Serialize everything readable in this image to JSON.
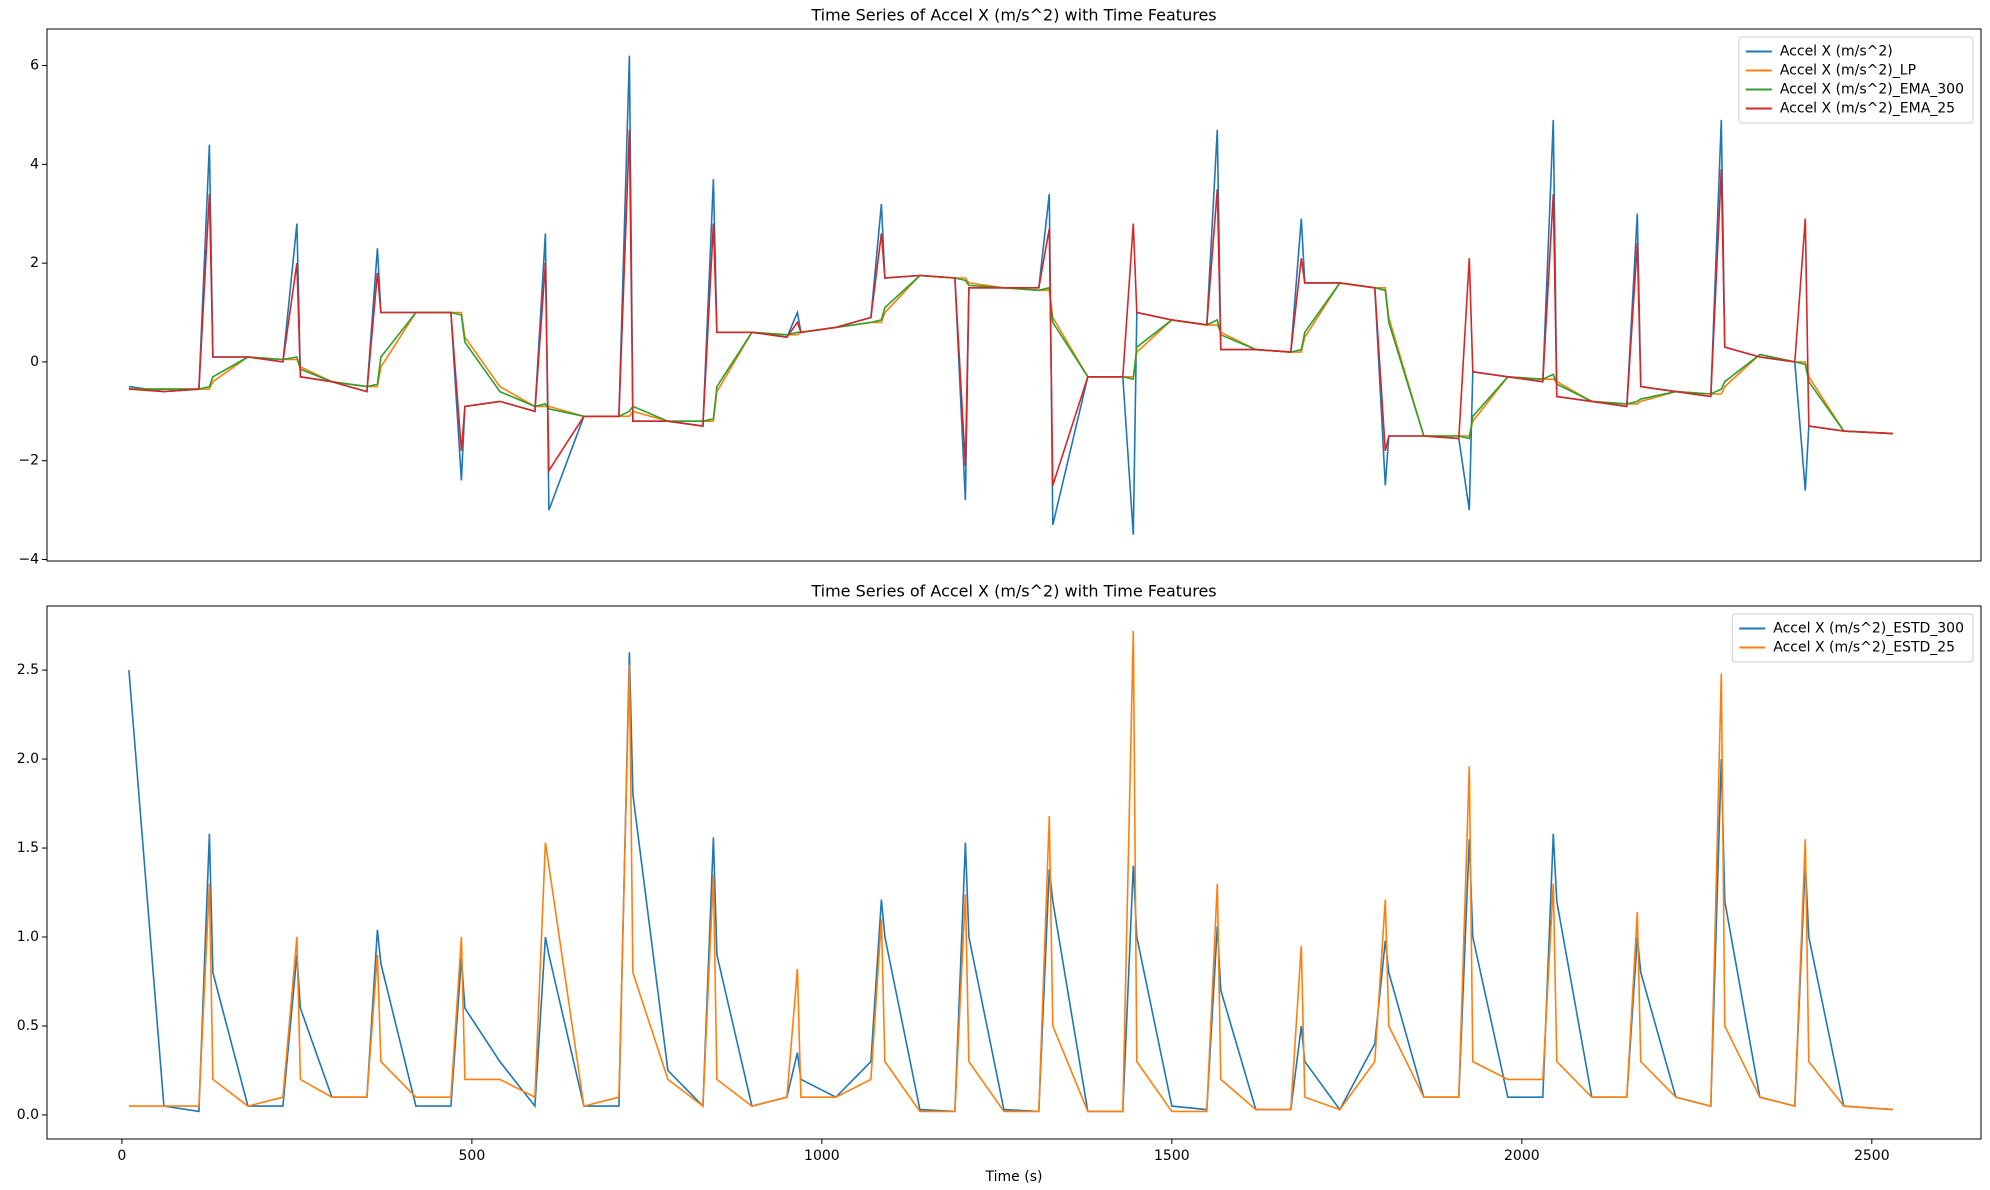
{
  "chart_data": [
    {
      "type": "line",
      "title": "Time Series of Accel X (m/s^2) with Time Features",
      "x": [
        10,
        60,
        110,
        125,
        130,
        180,
        230,
        250,
        255,
        300,
        350,
        365,
        370,
        420,
        470,
        485,
        490,
        540,
        590,
        605,
        610,
        660,
        710,
        725,
        730,
        780,
        830,
        845,
        850,
        900,
        950,
        965,
        970,
        1020,
        1070,
        1085,
        1090,
        1140,
        1190,
        1205,
        1210,
        1260,
        1310,
        1325,
        1330,
        1380,
        1430,
        1445,
        1450,
        1500,
        1550,
        1565,
        1570,
        1620,
        1670,
        1685,
        1690,
        1740,
        1790,
        1805,
        1810,
        1860,
        1910,
        1925,
        1930,
        1980,
        2030,
        2045,
        2050,
        2100,
        2150,
        2165,
        2170,
        2220,
        2270,
        2285,
        2290,
        2340,
        2390,
        2405,
        2410,
        2460,
        2530
      ],
      "xlim": [
        -107,
        2656
      ],
      "ylim": [
        -4.03,
        6.74
      ],
      "yticks": [
        {
          "value": -4,
          "label": "−4"
        },
        {
          "value": -2,
          "label": "−2"
        },
        0,
        2,
        4,
        6
      ],
      "legend": "upper right",
      "series": [
        {
          "name": "Accel X (m/s^2)",
          "color": "#1f77b4",
          "values": [
            -0.5,
            -0.6,
            -0.55,
            4.4,
            0.1,
            0.1,
            0.0,
            2.8,
            -0.3,
            -0.4,
            -0.6,
            2.3,
            1.0,
            1.0,
            1.0,
            -2.4,
            -0.9,
            -0.8,
            -1.0,
            2.6,
            -3.0,
            -1.1,
            -1.1,
            6.2,
            -1.2,
            -1.2,
            -1.3,
            3.7,
            0.6,
            0.6,
            0.5,
            1.0,
            0.6,
            0.7,
            0.9,
            3.2,
            1.7,
            1.75,
            1.7,
            -2.8,
            1.5,
            1.5,
            1.5,
            3.4,
            -3.3,
            -0.3,
            -0.3,
            -3.5,
            1.0,
            0.85,
            0.75,
            4.7,
            0.25,
            0.25,
            0.2,
            2.9,
            1.6,
            1.6,
            1.5,
            -2.5,
            -1.5,
            -1.5,
            -1.55,
            -3.0,
            -0.2,
            -0.3,
            -0.4,
            4.9,
            -0.7,
            -0.8,
            -0.9,
            3.0,
            -0.5,
            -0.6,
            -0.7,
            4.9,
            0.3,
            0.1,
            0.0,
            -2.6,
            -1.3,
            -1.4,
            -1.45
          ]
        },
        {
          "name": "Accel X (m/s^2)_LP",
          "color": "#ff7f0e",
          "values": [
            -0.55,
            -0.55,
            -0.55,
            -0.55,
            -0.4,
            0.1,
            0.05,
            0.05,
            -0.1,
            -0.4,
            -0.5,
            -0.5,
            -0.1,
            1.0,
            1.0,
            1.0,
            0.5,
            -0.5,
            -0.9,
            -0.9,
            -0.9,
            -1.1,
            -1.1,
            -1.1,
            -1.0,
            -1.2,
            -1.2,
            -1.2,
            -0.6,
            0.6,
            0.55,
            0.55,
            0.6,
            0.7,
            0.8,
            0.8,
            1.0,
            1.75,
            1.7,
            1.7,
            1.6,
            1.5,
            1.45,
            1.45,
            0.9,
            -0.3,
            -0.3,
            -0.3,
            0.2,
            0.85,
            0.75,
            0.75,
            0.6,
            0.25,
            0.2,
            0.2,
            0.5,
            1.6,
            1.5,
            1.5,
            0.9,
            -1.5,
            -1.5,
            -1.5,
            -1.2,
            -0.3,
            -0.35,
            -0.35,
            -0.4,
            -0.8,
            -0.85,
            -0.85,
            -0.8,
            -0.6,
            -0.65,
            -0.65,
            -0.5,
            0.15,
            0.0,
            0.0,
            -0.3,
            -1.4,
            -1.45
          ]
        },
        {
          "name": "Accel X (m/s^2)_EMA_300",
          "color": "#2ca02c",
          "values": [
            -0.55,
            -0.55,
            -0.55,
            -0.5,
            -0.3,
            0.1,
            0.05,
            0.1,
            -0.15,
            -0.4,
            -0.5,
            -0.45,
            0.1,
            1.0,
            1.0,
            0.95,
            0.4,
            -0.6,
            -0.9,
            -0.85,
            -0.95,
            -1.1,
            -1.1,
            -1.0,
            -0.9,
            -1.2,
            -1.2,
            -1.15,
            -0.5,
            0.6,
            0.55,
            0.6,
            0.6,
            0.7,
            0.8,
            0.85,
            1.1,
            1.75,
            1.7,
            1.65,
            1.55,
            1.5,
            1.45,
            1.5,
            0.8,
            -0.3,
            -0.3,
            -0.35,
            0.3,
            0.85,
            0.75,
            0.85,
            0.55,
            0.25,
            0.2,
            0.25,
            0.6,
            1.6,
            1.5,
            1.45,
            0.8,
            -1.5,
            -1.5,
            -1.55,
            -1.1,
            -0.3,
            -0.35,
            -0.25,
            -0.45,
            -0.8,
            -0.85,
            -0.8,
            -0.75,
            -0.6,
            -0.65,
            -0.55,
            -0.4,
            0.15,
            0.0,
            -0.05,
            -0.4,
            -1.4,
            -1.45
          ]
        },
        {
          "name": "Accel X (m/s^2)_EMA_25",
          "color": "#d62728",
          "values": [
            -0.55,
            -0.6,
            -0.55,
            3.4,
            0.1,
            0.1,
            0.0,
            2.0,
            -0.3,
            -0.4,
            -0.6,
            1.8,
            1.0,
            1.0,
            1.0,
            -1.8,
            -0.9,
            -0.8,
            -1.0,
            2.0,
            -2.2,
            -1.1,
            -1.1,
            4.7,
            -1.2,
            -1.2,
            -1.3,
            2.8,
            0.6,
            0.6,
            0.5,
            0.8,
            0.6,
            0.7,
            0.9,
            2.6,
            1.7,
            1.75,
            1.7,
            -2.1,
            1.5,
            1.5,
            1.5,
            2.7,
            -2.5,
            -0.3,
            -0.3,
            2.8,
            1.0,
            0.85,
            0.75,
            3.5,
            0.25,
            0.25,
            0.2,
            2.1,
            1.6,
            1.6,
            1.5,
            -1.8,
            -1.5,
            -1.5,
            -1.55,
            2.1,
            -0.2,
            -0.3,
            -0.4,
            3.4,
            -0.7,
            -0.8,
            -0.9,
            2.4,
            -0.5,
            -0.6,
            -0.7,
            3.9,
            0.3,
            0.1,
            0.0,
            2.9,
            -1.3,
            -1.4,
            -1.45
          ]
        }
      ]
    },
    {
      "type": "line",
      "title": "Time Series of Accel X (m/s^2) with Time Features",
      "xlabel": "Time (s)",
      "x": [
        10,
        60,
        110,
        125,
        130,
        180,
        230,
        250,
        255,
        300,
        350,
        365,
        370,
        420,
        470,
        485,
        490,
        540,
        590,
        605,
        610,
        660,
        710,
        725,
        730,
        780,
        830,
        845,
        850,
        900,
        950,
        965,
        970,
        1020,
        1070,
        1085,
        1090,
        1140,
        1190,
        1205,
        1210,
        1260,
        1310,
        1325,
        1330,
        1380,
        1430,
        1445,
        1450,
        1500,
        1550,
        1565,
        1570,
        1620,
        1670,
        1685,
        1690,
        1740,
        1790,
        1805,
        1810,
        1860,
        1910,
        1925,
        1930,
        1980,
        2030,
        2045,
        2050,
        2100,
        2150,
        2165,
        2170,
        2220,
        2270,
        2285,
        2290,
        2340,
        2390,
        2405,
        2410,
        2460,
        2530
      ],
      "xlim": [
        -107,
        2656
      ],
      "xticks": [
        0,
        500,
        1000,
        1500,
        2000,
        2500
      ],
      "ylim": [
        -0.135,
        2.86
      ],
      "yticks": [
        {
          "value": 0,
          "label": "0.0"
        },
        0.5,
        {
          "value": 1,
          "label": "1.0"
        },
        1.5,
        {
          "value": 2,
          "label": "2.0"
        },
        2.5
      ],
      "legend": "upper right",
      "series": [
        {
          "name": "Accel X (m/s^2)_ESTD_300",
          "color": "#1f77b4",
          "values": [
            2.5,
            0.05,
            0.02,
            1.58,
            0.8,
            0.05,
            0.05,
            0.9,
            0.6,
            0.1,
            0.1,
            1.04,
            0.85,
            0.05,
            0.05,
            0.88,
            0.6,
            0.3,
            0.05,
            1.0,
            0.9,
            0.05,
            0.05,
            2.6,
            1.8,
            0.25,
            0.05,
            1.56,
            0.9,
            0.05,
            0.1,
            0.35,
            0.2,
            0.1,
            0.3,
            1.21,
            1.0,
            0.03,
            0.02,
            1.53,
            1.0,
            0.03,
            0.02,
            1.38,
            1.2,
            0.02,
            0.02,
            1.4,
            1.0,
            0.05,
            0.03,
            1.06,
            0.7,
            0.03,
            0.03,
            0.5,
            0.3,
            0.03,
            0.4,
            0.98,
            0.8,
            0.1,
            0.1,
            1.55,
            1.0,
            0.1,
            0.1,
            1.58,
            1.2,
            0.1,
            0.1,
            1.0,
            0.8,
            0.1,
            0.05,
            2.0,
            1.2,
            0.1,
            0.05,
            1.42,
            1.0,
            0.05,
            0.03
          ]
        },
        {
          "name": "Accel X (m/s^2)_ESTD_25",
          "color": "#ff7f0e",
          "values": [
            0.05,
            0.05,
            0.05,
            1.3,
            0.2,
            0.05,
            0.1,
            1.0,
            0.2,
            0.1,
            0.1,
            0.9,
            0.3,
            0.1,
            0.1,
            1.0,
            0.2,
            0.2,
            0.1,
            1.53,
            1.4,
            0.05,
            0.1,
            2.53,
            0.8,
            0.2,
            0.05,
            1.35,
            0.2,
            0.05,
            0.1,
            0.82,
            0.1,
            0.1,
            0.2,
            1.1,
            0.3,
            0.02,
            0.02,
            1.24,
            0.3,
            0.02,
            0.02,
            1.68,
            0.5,
            0.02,
            0.02,
            2.72,
            0.3,
            0.02,
            0.02,
            1.3,
            0.2,
            0.03,
            0.03,
            0.95,
            0.1,
            0.03,
            0.3,
            1.21,
            0.5,
            0.1,
            0.1,
            1.96,
            0.3,
            0.2,
            0.2,
            1.3,
            0.3,
            0.1,
            0.1,
            1.14,
            0.3,
            0.1,
            0.05,
            2.48,
            0.5,
            0.1,
            0.05,
            1.55,
            0.3,
            0.05,
            0.03
          ]
        }
      ]
    }
  ]
}
